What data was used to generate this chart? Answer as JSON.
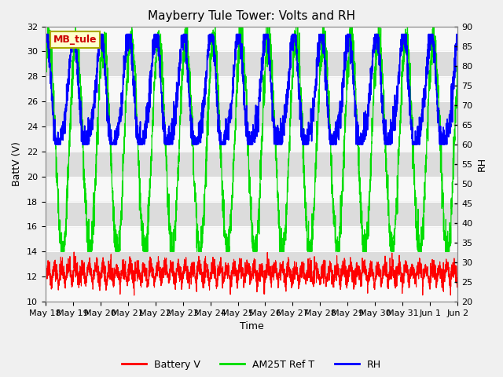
{
  "title": "Mayberry Tule Tower: Volts and RH",
  "xlabel": "Time",
  "ylabel_left": "BattV (V)",
  "ylabel_right": "RH",
  "ylim_left": [
    10,
    32
  ],
  "ylim_right": [
    20,
    90
  ],
  "x_tick_labels": [
    "May 18",
    "May 19",
    "May 20",
    "May 21",
    "May 22",
    "May 23",
    "May 24",
    "May 25",
    "May 26",
    "May 27",
    "May 28",
    "May 29",
    "May 30",
    "May 31",
    "Jun 1",
    "Jun 2"
  ],
  "station_label": "MB_tule",
  "station_label_fgcolor": "#CC0000",
  "station_label_bgcolor": "#FFFFCC",
  "station_label_edgecolor": "#AAAA00",
  "legend_labels": [
    "Battery V",
    "AM25T Ref T",
    "RH"
  ],
  "bg_band_color": "#DCDCDC",
  "bg_base_color": "#F8F8F8",
  "title_fontsize": 11,
  "axis_fontsize": 9,
  "tick_fontsize": 8,
  "legend_fontsize": 9
}
